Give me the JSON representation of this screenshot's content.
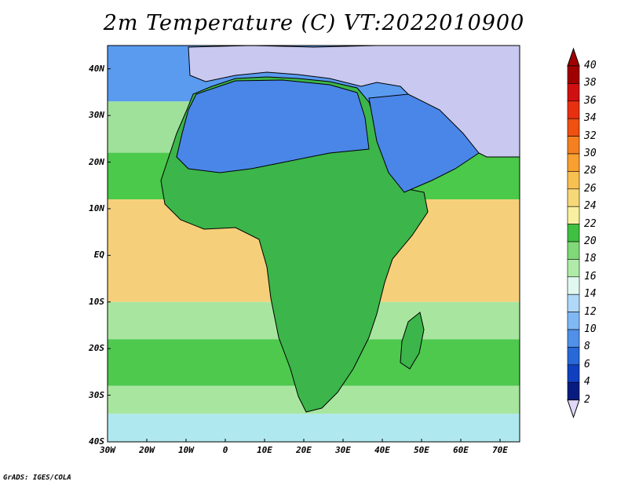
{
  "title": "2m Temperature (C) VT:2022010900",
  "credit": "GrADS: IGES/COLA",
  "map": {
    "lon_range": [
      -30,
      75
    ],
    "lat_range": [
      -40,
      45
    ],
    "lat_ticks": [
      "40N",
      "30N",
      "20N",
      "10N",
      "EQ",
      "10S",
      "20S",
      "30S",
      "40S"
    ],
    "lon_ticks": [
      "30W",
      "20W",
      "10W",
      "0",
      "10E",
      "20E",
      "30E",
      "40E",
      "50E",
      "60E",
      "70E"
    ],
    "ocean_bands": [
      {
        "lat_top": 45,
        "lat_bottom": 33,
        "color": "#5a9bf0"
      },
      {
        "lat_top": 33,
        "lat_bottom": 22,
        "color": "#9fe09a"
      },
      {
        "lat_top": 22,
        "lat_bottom": 12,
        "color": "#4ac94a"
      },
      {
        "lat_top": 12,
        "lat_bottom": -10,
        "color": "#f6cf7a"
      },
      {
        "lat_top": -10,
        "lat_bottom": -18,
        "color": "#a8e6a0"
      },
      {
        "lat_top": -18,
        "lat_bottom": -28,
        "color": "#4ec94e"
      },
      {
        "lat_top": -28,
        "lat_bottom": -34,
        "color": "#a8e6a0"
      },
      {
        "lat_top": -34,
        "lat_bottom": -40,
        "color": "#b0e8f0"
      }
    ],
    "land_color": "#3cb54a",
    "sahara_color": "#4a86e8",
    "asia_color": "#c8c8f0",
    "coast_color": "#000000"
  },
  "colorbar": {
    "values": [
      "40",
      "38",
      "36",
      "34",
      "32",
      "30",
      "28",
      "26",
      "24",
      "22",
      "20",
      "18",
      "16",
      "14",
      "12",
      "10",
      "8",
      "6",
      "4",
      "2"
    ],
    "colors": [
      "#a00000",
      "#d01010",
      "#e83010",
      "#f05010",
      "#f58020",
      "#f8a030",
      "#f8c050",
      "#f6d878",
      "#f8f0a0",
      "#40c040",
      "#80d878",
      "#b0eaa8",
      "#e0f8f0",
      "#b0d8f8",
      "#80b8f4",
      "#5090e8",
      "#2868d8",
      "#1040c0",
      "#081c80",
      "#e0d8f8"
    ],
    "top_arrow_color": "#a00000",
    "bottom_arrow_color": "#e0d8f8"
  }
}
